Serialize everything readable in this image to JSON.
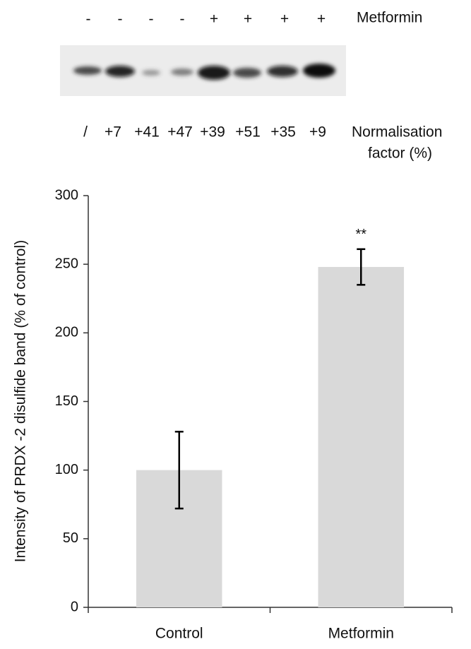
{
  "blot": {
    "treatment_label": "Metformin",
    "treatment": [
      "-",
      "-",
      "-",
      "-",
      "+",
      "+",
      "+",
      "+"
    ],
    "normalisation_label": [
      "Normalisation",
      "factor (%)"
    ],
    "normalisation_factors": [
      "/",
      "+7",
      "+41",
      "+47",
      "+39",
      "+51",
      "+35",
      "+9"
    ]
  },
  "chart_data": {
    "type": "bar",
    "ylabel": "Intensity of PRDX -2 disulfide band (% of control)",
    "categories": [
      "Control",
      "Metformin"
    ],
    "values": [
      100,
      248
    ],
    "errors": [
      28,
      13
    ],
    "significance": [
      null,
      "**"
    ],
    "color": "#d9d9d9",
    "ylim": [
      0,
      300
    ],
    "yticks": [
      0,
      50,
      100,
      150,
      200,
      250,
      300
    ]
  }
}
